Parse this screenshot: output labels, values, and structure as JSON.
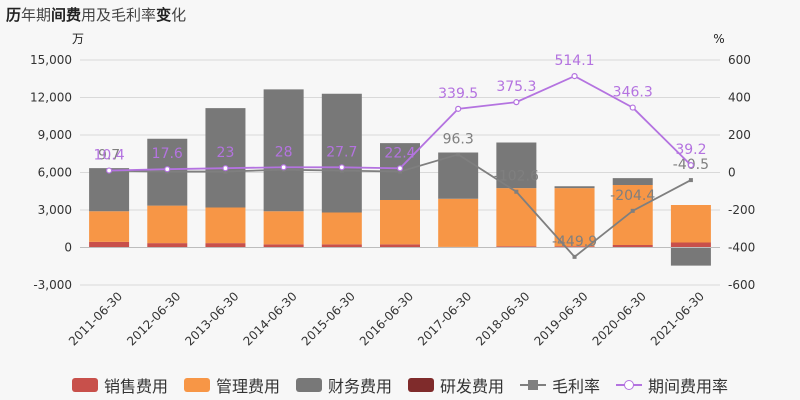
{
  "title": {
    "part1": "历",
    "part2": "年期",
    "part3": "间费",
    "part4": "用及毛利率",
    "part5": "变",
    "part6": "化"
  },
  "units": {
    "left": "万",
    "right": "%"
  },
  "colors": {
    "sales": "#c8504b",
    "admin": "#f79646",
    "finance": "#787878",
    "rnd": "#7f2b2b",
    "gross": "#7f7f7f",
    "period": "#b473e0",
    "grid": "#d9d9d9"
  },
  "legend": [
    {
      "label": "销售费用",
      "kind": "rect",
      "color": "#c8504b"
    },
    {
      "label": "管理费用",
      "kind": "rect",
      "color": "#f79646"
    },
    {
      "label": "财务费用",
      "kind": "rect",
      "color": "#787878"
    },
    {
      "label": "研发费用",
      "kind": "rect",
      "color": "#7f2b2b"
    },
    {
      "label": "毛利率",
      "kind": "line-square",
      "color": "#7f7f7f"
    },
    {
      "label": "期间费用率",
      "kind": "line-circle",
      "color": "#b473e0"
    }
  ],
  "chart_data": {
    "type": "bar",
    "categories": [
      "2011-06-30",
      "2012-06-30",
      "2013-06-30",
      "2014-06-30",
      "2015-06-30",
      "2016-06-30",
      "2017-06-30",
      "2018-06-30",
      "2019-06-30",
      "2020-06-30",
      "2021-06-30"
    ],
    "stacked": true,
    "series": [
      {
        "name": "销售费用",
        "type": "bar",
        "axis": "left",
        "values": [
          450,
          350,
          350,
          250,
          250,
          250,
          50,
          100,
          100,
          200,
          400
        ]
      },
      {
        "name": "管理费用",
        "type": "bar",
        "axis": "left",
        "values": [
          2450,
          3000,
          2850,
          2650,
          2550,
          3550,
          3850,
          4650,
          4650,
          4800,
          3000
        ]
      },
      {
        "name": "财务费用",
        "type": "bar",
        "axis": "left",
        "values": [
          3450,
          5350,
          7950,
          9750,
          9500,
          4550,
          3700,
          3650,
          150,
          550,
          -1450
        ]
      },
      {
        "name": "研发费用",
        "type": "bar",
        "axis": "left",
        "values": [
          0,
          0,
          0,
          0,
          0,
          0,
          0,
          0,
          0,
          0,
          0
        ]
      },
      {
        "name": "毛利率",
        "type": "line",
        "axis": "right",
        "values": [
          9.7,
          5,
          5,
          15,
          10,
          5,
          96.3,
          -102.6,
          -449.9,
          -204.4,
          -40.5
        ],
        "labels": [
          "9.7",
          "",
          "",
          "",
          "",
          "",
          "96.3",
          "-102.6",
          "-449.9",
          "-204.4",
          "-40.5"
        ]
      },
      {
        "name": "期间费用率",
        "type": "line",
        "axis": "right",
        "values": [
          10.4,
          17.6,
          23,
          28,
          27.7,
          22.4,
          339.5,
          375.3,
          514.1,
          346.3,
          39.2
        ],
        "labels": [
          "10.4",
          "17.6",
          "23",
          "28",
          "27.7",
          "22.4",
          "339.5",
          "375.3",
          "514.1",
          "346.3",
          "39.2"
        ]
      }
    ],
    "y_left": {
      "min": -3000,
      "max": 15000,
      "ticks": [
        "-3,000",
        "0",
        "3,000",
        "6,000",
        "9,000",
        "12,000",
        "15,000"
      ],
      "tick_values": [
        -3000,
        0,
        3000,
        6000,
        9000,
        12000,
        15000
      ]
    },
    "y_right": {
      "min": -600,
      "max": 600,
      "ticks": [
        "-600",
        "-400",
        "-200",
        "0",
        "200",
        "400",
        "600"
      ],
      "tick_values": [
        -600,
        -400,
        -200,
        0,
        200,
        400,
        600
      ]
    },
    "grid": true,
    "legend_position": "bottom"
  }
}
